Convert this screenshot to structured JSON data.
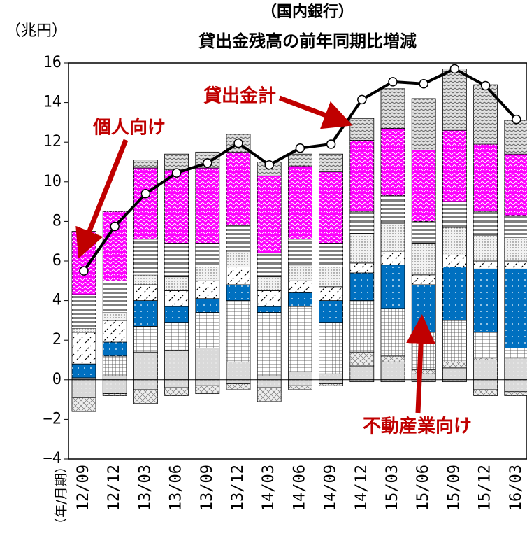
{
  "chart_data": {
    "type": "bar",
    "title": [
      "（国内銀行）",
      "貸出金残高の前年同期比増減"
    ],
    "y_label": "（兆円）",
    "x_label": "（年/月期）",
    "annotations": [
      "個人向け",
      "貸出金計",
      "不動産業向け"
    ],
    "categories": [
      "12/09",
      "12/12",
      "13/03",
      "13/06",
      "13/09",
      "13/12",
      "14/03",
      "14/06",
      "14/09",
      "14/12",
      "15/03",
      "15/06",
      "15/09",
      "15/12",
      "16/03"
    ],
    "ylim": [
      -4,
      16
    ],
    "yticks": [
      {
        "value": -4,
        "label": "−4"
      },
      {
        "value": -2,
        "label": "−2"
      },
      0,
      2,
      4,
      6,
      8,
      10,
      12,
      14,
      16
    ],
    "series": [
      {
        "color": "#d9d9d9",
        "values": [
          0.1,
          0.2,
          1.4,
          1.5,
          1.6,
          0.9,
          0.2,
          0.4,
          0.3,
          0.7,
          0.9,
          0.3,
          0.6,
          1.0,
          1.1
        ]
      },
      {
        "color": "#eeeeee",
        "values": [
          0,
          0,
          0,
          0,
          0,
          0,
          0,
          0,
          0,
          0.7,
          0.3,
          0.2,
          0.3,
          0.1,
          0
        ]
      },
      {
        "color": "#ffffff",
        "values": [
          0,
          1.0,
          1.3,
          1.4,
          1.8,
          3.1,
          3.2,
          3.3,
          2.6,
          2.6,
          2.4,
          1.9,
          2.1,
          1.3,
          0.5
        ]
      },
      {
        "color": "#0070c0",
        "values": [
          0.7,
          0.7,
          1.3,
          0.8,
          0.7,
          0.8,
          0.3,
          0.7,
          1.1,
          1.4,
          2.2,
          2.4,
          2.7,
          3.2,
          4.0
        ]
      },
      {
        "color": "#ffffff",
        "values": [
          1.6,
          1.1,
          0.8,
          0.8,
          0.9,
          0.9,
          0.8,
          0.6,
          0.7,
          0.5,
          0.7,
          0.5,
          0.6,
          0.4,
          0.4
        ]
      },
      {
        "color": "#f2f2f2",
        "values": [
          0.2,
          0.4,
          0.5,
          0.7,
          0.7,
          0.8,
          0.7,
          0.8,
          1.0,
          1.5,
          1.4,
          1.6,
          1.4,
          1.3,
          1.2
        ]
      },
      {
        "color": "#808080",
        "values": [
          1.7,
          1.6,
          1.8,
          1.7,
          1.2,
          1.3,
          1.2,
          1.3,
          1.2,
          1.1,
          1.4,
          1.1,
          1.3,
          1.2,
          1.1
        ]
      },
      {
        "color": "#ff00ff",
        "values": [
          3.2,
          3.5,
          3.6,
          3.7,
          3.8,
          3.7,
          3.9,
          3.7,
          3.6,
          3.6,
          3.4,
          3.6,
          3.6,
          3.4,
          3.1
        ]
      },
      {
        "color": "#e0e0e0",
        "values": [
          0,
          0,
          0.4,
          0.8,
          0.8,
          0.9,
          0.7,
          0.6,
          0.9,
          1.1,
          2.0,
          2.6,
          3.1,
          3.0,
          1.7
        ]
      },
      {
        "color": "#d9d9d9",
        "values": [
          -0.9,
          -0.7,
          -0.5,
          -0.4,
          -0.3,
          -0.2,
          -0.4,
          -0.3,
          -0.2,
          -0.1,
          -0.1,
          -0.1,
          -0.1,
          -0.5,
          -0.6
        ]
      },
      {
        "color": "#eeeeee",
        "values": [
          -0.7,
          -0.1,
          -0.7,
          -0.4,
          -0.4,
          -0.3,
          -0.7,
          -0.2,
          -0.1,
          0,
          0,
          0,
          0,
          -0.3,
          -0.2
        ]
      },
      {
        "type": "line",
        "color": "#000000",
        "values": [
          5.5,
          7.75,
          9.4,
          10.45,
          10.95,
          11.95,
          10.85,
          11.7,
          11.9,
          14.15,
          15.05,
          14.95,
          15.7,
          14.85,
          13.15
        ]
      }
    ]
  }
}
